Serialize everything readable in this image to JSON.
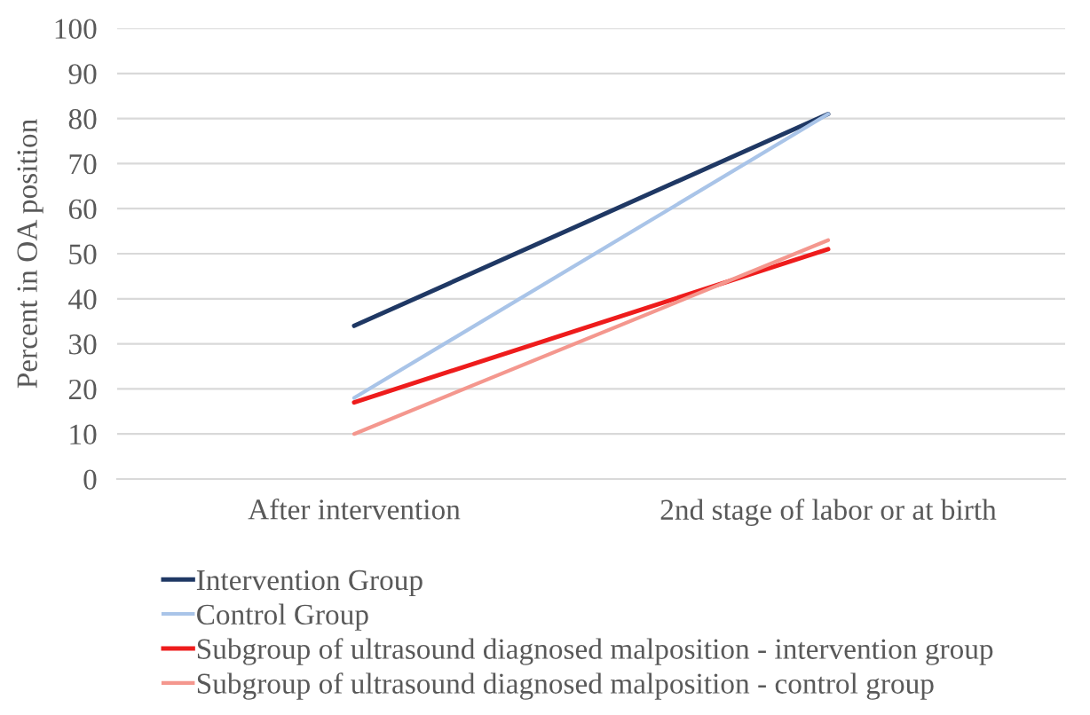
{
  "chart_data": {
    "type": "line",
    "ylabel": "Percent in OA position",
    "categories": [
      "After intervention",
      "2nd stage of labor or at birth"
    ],
    "series": [
      {
        "name": "Intervention Group",
        "color": "#1f3864",
        "values": [
          34,
          81
        ]
      },
      {
        "name": "Control Group",
        "color": "#a9c4e8",
        "values": [
          18,
          81
        ]
      },
      {
        "name": "Subgroup of ultrasound diagnosed malposition - intervention group",
        "color": "#ee1c1c",
        "values": [
          17,
          51
        ]
      },
      {
        "name": "Subgroup of ultrasound diagnosed malposition - control group",
        "color": "#f4978e",
        "values": [
          10,
          53
        ]
      }
    ],
    "ylim": [
      0,
      100
    ],
    "yticks": [
      0,
      10,
      20,
      30,
      40,
      50,
      60,
      70,
      80,
      90,
      100
    ],
    "grid": "y",
    "legend": "bottom",
    "marker": "none",
    "line_style": "solid"
  }
}
